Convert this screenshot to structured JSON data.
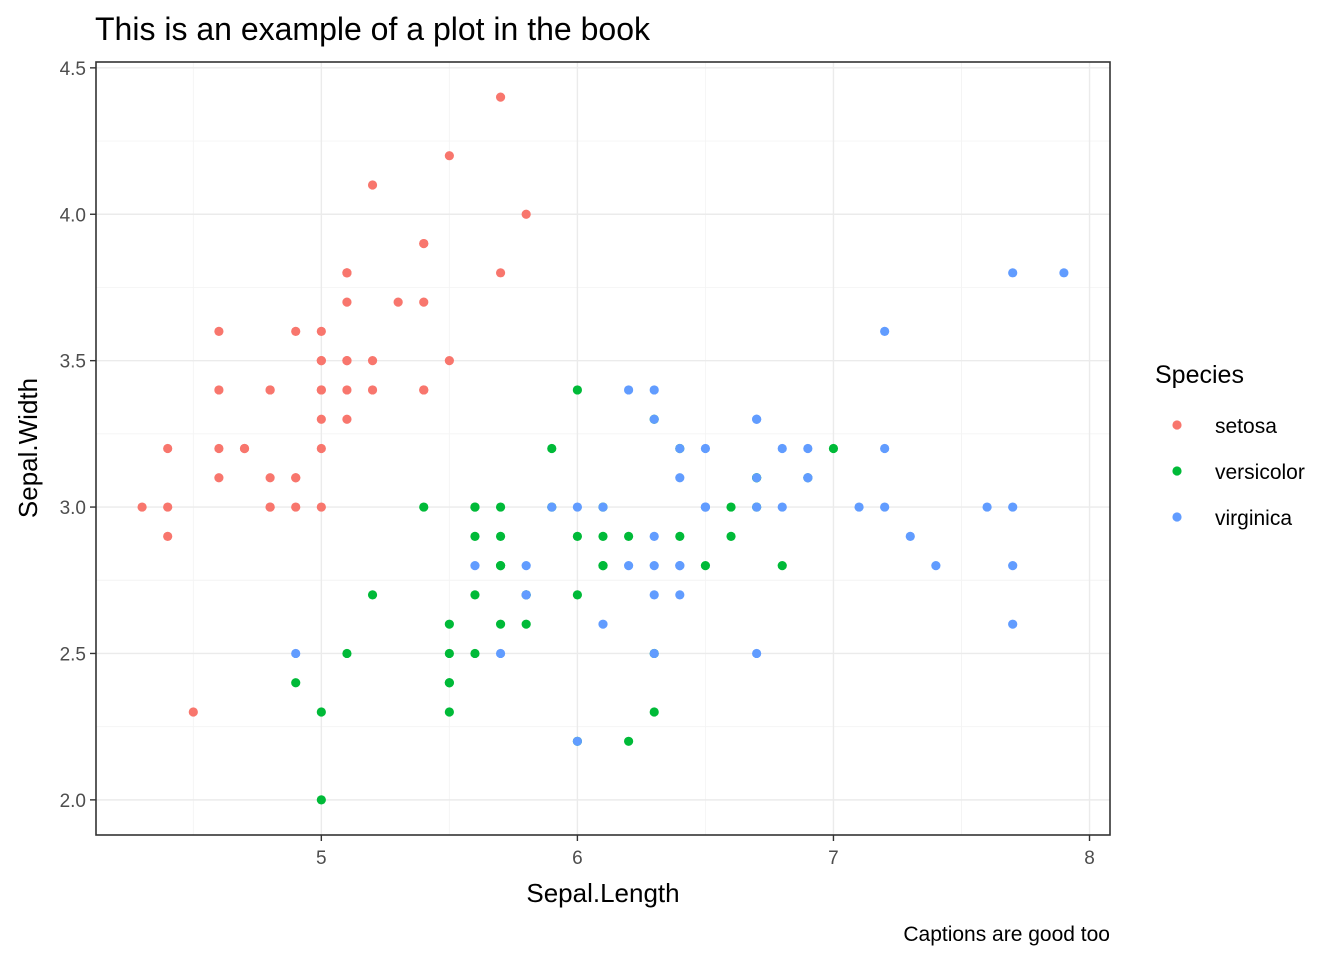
{
  "chart_data": {
    "type": "scatter",
    "title": "This is an example of a plot in the book",
    "xlabel": "Sepal.Length",
    "ylabel": "Sepal.Width",
    "caption": "Captions are good too",
    "xlim": [
      4.12,
      8.08
    ],
    "ylim": [
      1.88,
      4.52
    ],
    "x_ticks": [
      5,
      6,
      7,
      8
    ],
    "x_tick_labels": [
      "5",
      "6",
      "7",
      "8"
    ],
    "y_ticks": [
      2.0,
      2.5,
      3.0,
      3.5,
      4.0,
      4.5
    ],
    "y_tick_labels": [
      "2.0",
      "2.5",
      "3.0",
      "3.5",
      "4.0",
      "4.5"
    ],
    "grid": true,
    "legend": {
      "title": "Species",
      "position": "right"
    },
    "series": [
      {
        "name": "setosa",
        "color": "#F8766D",
        "x": [
          5.1,
          4.9,
          4.7,
          4.6,
          5.0,
          5.4,
          4.6,
          5.0,
          4.4,
          4.9,
          5.4,
          4.8,
          4.8,
          4.3,
          5.8,
          5.7,
          5.4,
          5.1,
          5.7,
          5.1,
          5.4,
          5.1,
          4.6,
          5.1,
          4.8,
          5.0,
          5.0,
          5.2,
          5.2,
          4.7,
          4.8,
          5.4,
          5.2,
          5.5,
          4.9,
          5.0,
          5.5,
          4.9,
          4.4,
          5.1,
          5.0,
          4.5,
          4.4,
          5.0,
          5.1,
          4.8,
          5.1,
          4.6,
          5.3,
          5.0
        ],
        "y": [
          3.5,
          3.0,
          3.2,
          3.1,
          3.6,
          3.9,
          3.4,
          3.4,
          2.9,
          3.1,
          3.7,
          3.4,
          3.0,
          3.0,
          4.0,
          4.4,
          3.9,
          3.5,
          3.8,
          3.8,
          3.4,
          3.7,
          3.6,
          3.3,
          3.4,
          3.0,
          3.4,
          3.5,
          3.4,
          3.2,
          3.1,
          3.4,
          4.1,
          4.2,
          3.1,
          3.2,
          3.5,
          3.6,
          3.0,
          3.4,
          3.5,
          2.3,
          3.2,
          3.5,
          3.8,
          3.0,
          3.8,
          3.2,
          3.7,
          3.3
        ]
      },
      {
        "name": "versicolor",
        "color": "#00BA38",
        "x": [
          7.0,
          6.4,
          6.9,
          5.5,
          6.5,
          5.7,
          6.3,
          4.9,
          6.6,
          5.2,
          5.0,
          5.9,
          6.0,
          6.1,
          5.6,
          6.7,
          5.6,
          5.8,
          6.2,
          5.6,
          5.9,
          6.1,
          6.3,
          6.1,
          6.4,
          6.6,
          6.8,
          6.7,
          6.0,
          5.7,
          5.5,
          5.5,
          5.8,
          6.0,
          5.4,
          6.0,
          6.7,
          6.3,
          5.6,
          5.5,
          5.5,
          6.1,
          5.8,
          5.0,
          5.6,
          5.7,
          5.7,
          6.2,
          5.1,
          5.7
        ],
        "y": [
          3.2,
          3.2,
          3.1,
          2.3,
          2.8,
          2.8,
          3.3,
          2.4,
          2.9,
          2.7,
          2.0,
          3.0,
          2.2,
          2.9,
          2.9,
          3.1,
          3.0,
          2.7,
          2.2,
          2.5,
          3.2,
          2.8,
          2.5,
          2.8,
          2.9,
          3.0,
          2.8,
          3.0,
          2.9,
          2.6,
          2.4,
          2.4,
          2.7,
          2.7,
          3.0,
          3.4,
          3.1,
          2.3,
          3.0,
          2.5,
          2.6,
          3.0,
          2.6,
          2.3,
          2.7,
          3.0,
          2.9,
          2.9,
          2.5,
          2.8
        ]
      },
      {
        "name": "virginica",
        "color": "#619CFF",
        "x": [
          6.3,
          5.8,
          7.1,
          6.3,
          6.5,
          7.6,
          4.9,
          7.3,
          6.7,
          7.2,
          6.5,
          6.4,
          6.8,
          5.7,
          5.8,
          6.4,
          6.5,
          7.7,
          7.7,
          6.0,
          6.9,
          5.6,
          7.7,
          6.3,
          6.7,
          7.2,
          6.2,
          6.1,
          6.4,
          7.2,
          7.4,
          7.9,
          6.4,
          6.3,
          6.1,
          7.7,
          6.3,
          6.4,
          6.0,
          6.9,
          6.7,
          6.9,
          5.8,
          6.8,
          6.7,
          6.7,
          6.3,
          6.5,
          6.2,
          5.9
        ],
        "y": [
          3.3,
          2.7,
          3.0,
          2.9,
          3.0,
          3.0,
          2.5,
          2.9,
          2.5,
          3.6,
          3.2,
          2.7,
          3.0,
          2.5,
          2.8,
          3.2,
          3.0,
          3.8,
          2.6,
          2.2,
          3.2,
          2.8,
          2.8,
          2.7,
          3.3,
          3.2,
          2.8,
          3.0,
          2.8,
          3.0,
          2.8,
          3.8,
          2.8,
          2.8,
          2.6,
          3.0,
          3.4,
          3.1,
          3.0,
          3.1,
          3.1,
          3.1,
          2.7,
          3.2,
          3.3,
          3.0,
          2.5,
          3.0,
          3.4,
          3.0
        ]
      }
    ]
  }
}
